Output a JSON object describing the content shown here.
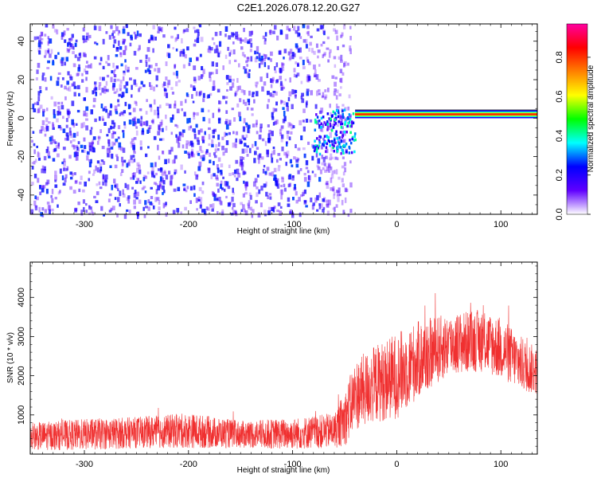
{
  "title": "C2E1.2026.078.12.20.G27",
  "chart_data": [
    {
      "type": "heatmap",
      "xlabel": "Height of straight line (km)",
      "ylabel": "Frequency (Hz)",
      "xlim": [
        -352,
        135
      ],
      "ylim": [
        -50,
        49
      ],
      "xticks": [
        -300,
        -200,
        -100,
        0,
        100
      ],
      "yticks": [
        -40,
        -20,
        0,
        20,
        40
      ],
      "xtick_labels": [
        "-300",
        "-200",
        "-100",
        "0",
        "100"
      ],
      "ytick_labels": [
        "-40",
        "-20",
        "0",
        "20",
        "40"
      ],
      "colorbar": {
        "label": "Normalized spectral amplitude",
        "range": [
          0,
          0.97
        ],
        "ticks": [
          0.0,
          0.2,
          0.4,
          0.6,
          0.8
        ],
        "tick_labels": [
          "0.0",
          "0.2",
          "0.4",
          "0.6",
          "0.8"
        ],
        "colormap": [
          "#ffffff",
          "#6000ff",
          "#0000ff",
          "#00ffff",
          "#00ff00",
          "#ffff00",
          "#ff8000",
          "#ff0000",
          "#ff00a0"
        ]
      },
      "regions": [
        {
          "description": "broadband noise",
          "x": [
            -352,
            -60
          ],
          "y": [
            -50,
            49
          ],
          "amplitude": 0.1
        },
        {
          "description": "transition",
          "x": [
            -60,
            -40
          ],
          "y": [
            -18,
            5
          ],
          "amplitude": 0.3
        },
        {
          "description": "signal carrier",
          "x": [
            -40,
            135
          ],
          "y": [
            1,
            3
          ],
          "amplitude": 0.9
        }
      ]
    },
    {
      "type": "line",
      "xlabel": "Height of straight line (km)",
      "ylabel": "SNR (10 * v/v)",
      "xlim": [
        -352,
        135
      ],
      "ylim": [
        0,
        4900
      ],
      "xticks": [
        -300,
        -200,
        -100,
        0,
        100
      ],
      "yticks": [
        1000,
        2000,
        3000,
        4000
      ],
      "xtick_labels": [
        "-300",
        "-200",
        "-100",
        "0",
        "100"
      ],
      "ytick_labels": [
        "1000",
        "2000",
        "3000",
        "4000"
      ],
      "color": "#f03030",
      "envelope": {
        "x": [
          -352,
          -300,
          -250,
          -200,
          -150,
          -100,
          -60,
          -50,
          -40,
          -20,
          0,
          20,
          50,
          80,
          100,
          120,
          135
        ],
        "mean": [
          450,
          500,
          550,
          600,
          500,
          520,
          600,
          900,
          1500,
          1800,
          2000,
          2400,
          2800,
          2900,
          2700,
          2300,
          2100
        ],
        "spread": [
          350,
          400,
          400,
          450,
          350,
          400,
          450,
          700,
          900,
          1000,
          1100,
          1000,
          800,
          800,
          800,
          700,
          600
        ]
      }
    }
  ]
}
